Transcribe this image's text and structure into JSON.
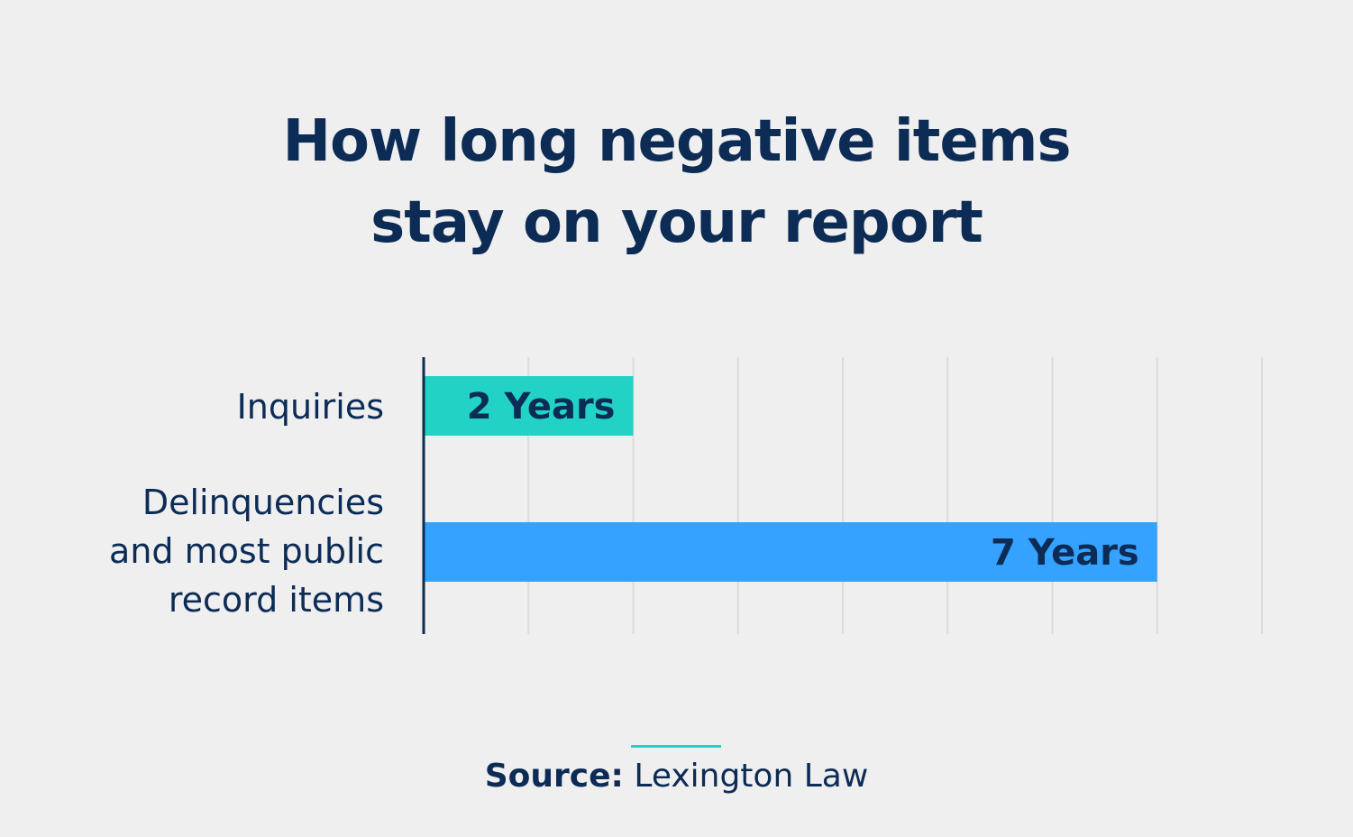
{
  "chart_data": {
    "type": "bar",
    "orientation": "horizontal",
    "title": "How long negative items stay on your report",
    "title_lines": [
      "How long negative items",
      "stay on your report"
    ],
    "categories": [
      "Inquiries",
      "Delinquencies and most public record items"
    ],
    "category_lines": [
      [
        "Inquiries"
      ],
      [
        "Delinquencies",
        "and most public",
        "record items"
      ]
    ],
    "values": [
      2,
      7
    ],
    "data_labels": [
      "2 Years",
      "7 Years"
    ],
    "colors": [
      "#22d3c5",
      "#35a2ff"
    ],
    "xlim": [
      0,
      8
    ],
    "grid": true,
    "xlabel": "",
    "ylabel": ""
  },
  "source": {
    "label": "Source:",
    "value": "Lexington Law"
  }
}
